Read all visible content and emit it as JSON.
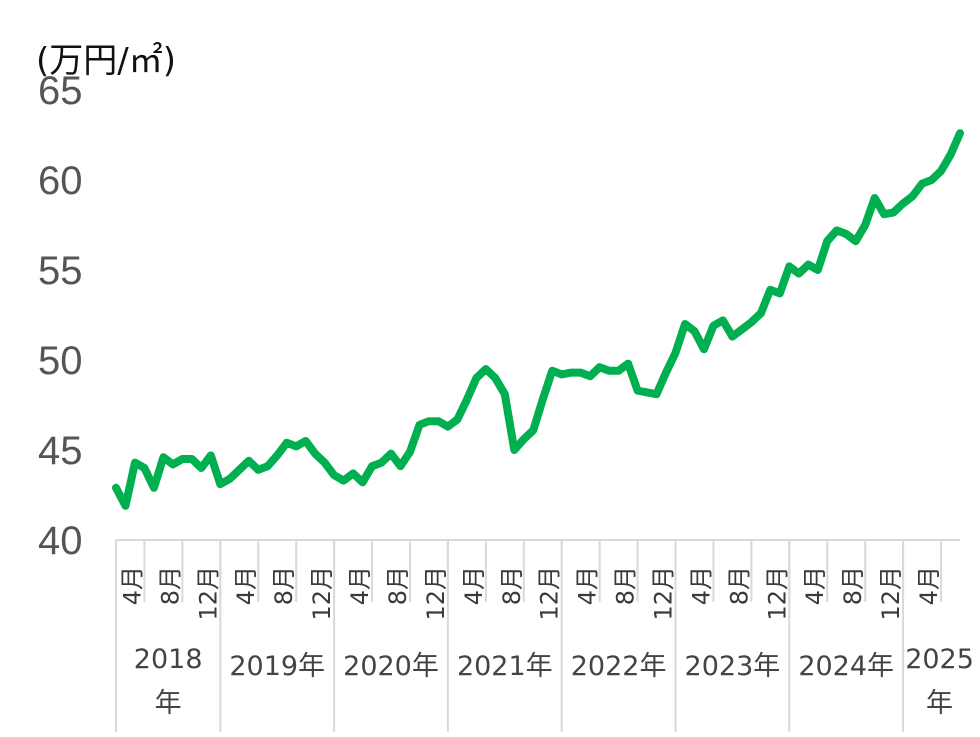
{
  "chart_data": {
    "type": "line",
    "title": "",
    "xlabel": "",
    "ylabel": "",
    "unit_label": "(万円/㎡)",
    "ylim": [
      40,
      65
    ],
    "yticks": [
      "40",
      "45",
      "50",
      "55",
      "60",
      "65"
    ],
    "grid": false,
    "legend": "none",
    "line_color": "#00b050",
    "axis_color": "#d9d9d9",
    "month_labels": [
      "4月",
      "8月",
      "12月"
    ],
    "x_start": "2018-01",
    "years": [
      {
        "line1": "2018",
        "line2": "年"
      },
      {
        "line1": "2019年",
        "line2": ""
      },
      {
        "line1": "2020年",
        "line2": ""
      },
      {
        "line1": "2021年",
        "line2": ""
      },
      {
        "line1": "2022年",
        "line2": ""
      },
      {
        "line1": "2023年",
        "line2": ""
      },
      {
        "line1": "2024年",
        "line2": ""
      },
      {
        "line1": "2025",
        "line2": "年"
      }
    ],
    "series": [
      {
        "values": [
          42.9,
          41.9,
          44.3,
          44.0,
          42.9,
          44.6,
          44.2,
          44.5,
          44.5,
          44.0,
          44.7,
          43.1,
          43.4,
          43.9,
          44.4,
          43.9,
          44.1,
          44.7,
          45.4,
          45.2,
          45.5,
          44.8,
          44.3,
          43.6,
          43.3,
          43.7,
          43.2,
          44.1,
          44.3,
          44.8,
          44.1,
          44.9,
          46.4,
          46.6,
          46.6,
          46.3,
          46.7,
          47.8,
          49.0,
          49.5,
          49.0,
          48.1,
          45.0,
          45.6,
          46.1,
          47.8,
          49.4,
          49.2,
          49.3,
          49.3,
          49.1,
          49.6,
          49.4,
          49.4,
          49.8,
          48.3,
          48.2,
          48.1,
          49.3,
          50.4,
          52.0,
          51.6,
          50.6,
          51.9,
          52.2,
          51.3,
          51.7,
          52.1,
          52.6,
          53.9,
          53.7,
          55.2,
          54.8,
          55.3,
          55.0,
          56.6,
          57.2,
          57.0,
          56.6,
          57.5,
          59.0,
          58.1,
          58.2,
          58.7,
          59.1,
          59.8,
          60.0,
          60.5,
          61.4,
          62.6
        ]
      }
    ]
  }
}
